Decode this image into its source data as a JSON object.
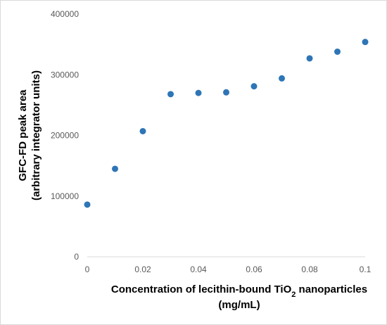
{
  "chart_data": {
    "type": "scatter",
    "title": "",
    "xlabel": {
      "prefix": "Concentration of lecithin-bound TiO",
      "subscript": "2",
      "suffix": " nanoparticles",
      "line2": "(mg/mL)"
    },
    "ylabel": {
      "line1": "GFC-FD peak area",
      "line2": "(arbitrary integrator units)"
    },
    "xlim": [
      0,
      0.1
    ],
    "ylim": [
      0,
      400000
    ],
    "x_ticks": [
      0,
      0.02,
      0.04,
      0.06,
      0.08,
      0.1
    ],
    "x_tick_labels": [
      "0",
      "0.02",
      "0.04",
      "0.06",
      "0.08",
      "0.1"
    ],
    "y_ticks": [
      0,
      100000,
      200000,
      300000,
      400000
    ],
    "y_tick_labels": [
      "0",
      "100000",
      "200000",
      "300000",
      "400000"
    ],
    "grid": false,
    "legend": "none",
    "marker_color": "#2E75B6",
    "series": [
      {
        "x": [
          0,
          0.01,
          0.02,
          0.03,
          0.04,
          0.05,
          0.06,
          0.07,
          0.08,
          0.09,
          0.1
        ],
        "y": [
          86000,
          145000,
          207000,
          268000,
          270000,
          271000,
          281000,
          294000,
          327000,
          338000,
          354000
        ]
      }
    ]
  }
}
